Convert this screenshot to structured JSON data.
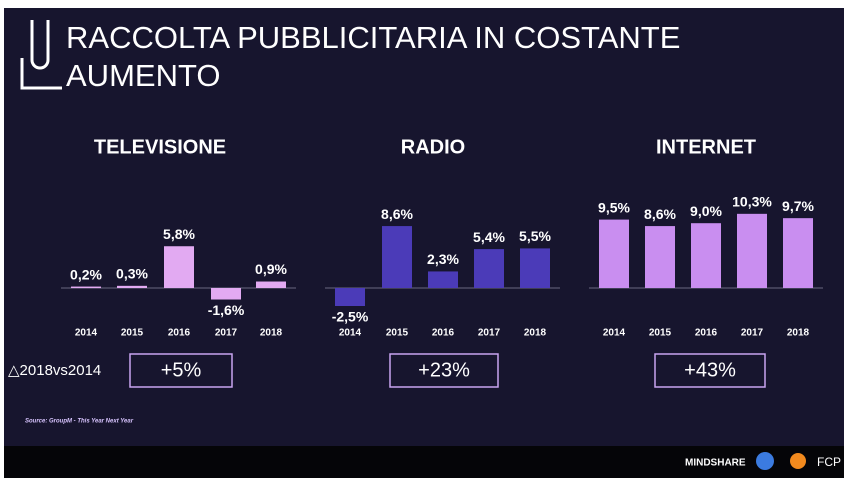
{
  "header": {
    "title_lines": [
      "RACCOLTA PUBBLICITARIA IN COSTANTE",
      "AUMENTO"
    ]
  },
  "chart_data": [
    {
      "type": "bar",
      "title": "TELEVISIONE",
      "categories": [
        "2014",
        "2015",
        "2016",
        "2017",
        "2018"
      ],
      "values": [
        0.2,
        0.3,
        5.8,
        -1.6,
        0.9
      ],
      "value_labels": [
        "0,2%",
        "0,3%",
        "5,8%",
        "-1,6%",
        "0,9%"
      ],
      "color": "#e2aaf2"
    },
    {
      "type": "bar",
      "title": "RADIO",
      "categories": [
        "2014",
        "2015",
        "2016",
        "2017",
        "2018"
      ],
      "values": [
        -2.5,
        8.6,
        2.3,
        5.4,
        5.5
      ],
      "value_labels": [
        "-2,5%",
        "8,6%",
        "2,3%",
        "5,4%",
        "5,5%"
      ],
      "color": "#4b3bb8"
    },
    {
      "type": "bar",
      "title": "INTERNET",
      "categories": [
        "2014",
        "2015",
        "2016",
        "2017",
        "2018"
      ],
      "values": [
        9.5,
        8.6,
        9.0,
        10.3,
        9.7
      ],
      "value_labels": [
        "9,5%",
        "8,6%",
        "9,0%",
        "10,3%",
        "9,7%"
      ],
      "color": "#c98ef0"
    }
  ],
  "comparison": {
    "label": "△2018vs2014",
    "deltas": [
      "+5%",
      "+23%",
      "+43%"
    ]
  },
  "footer": {
    "source": "Source: GroupM - This Year Next Year",
    "logos": [
      "MINDSHARE",
      "FCP"
    ]
  }
}
